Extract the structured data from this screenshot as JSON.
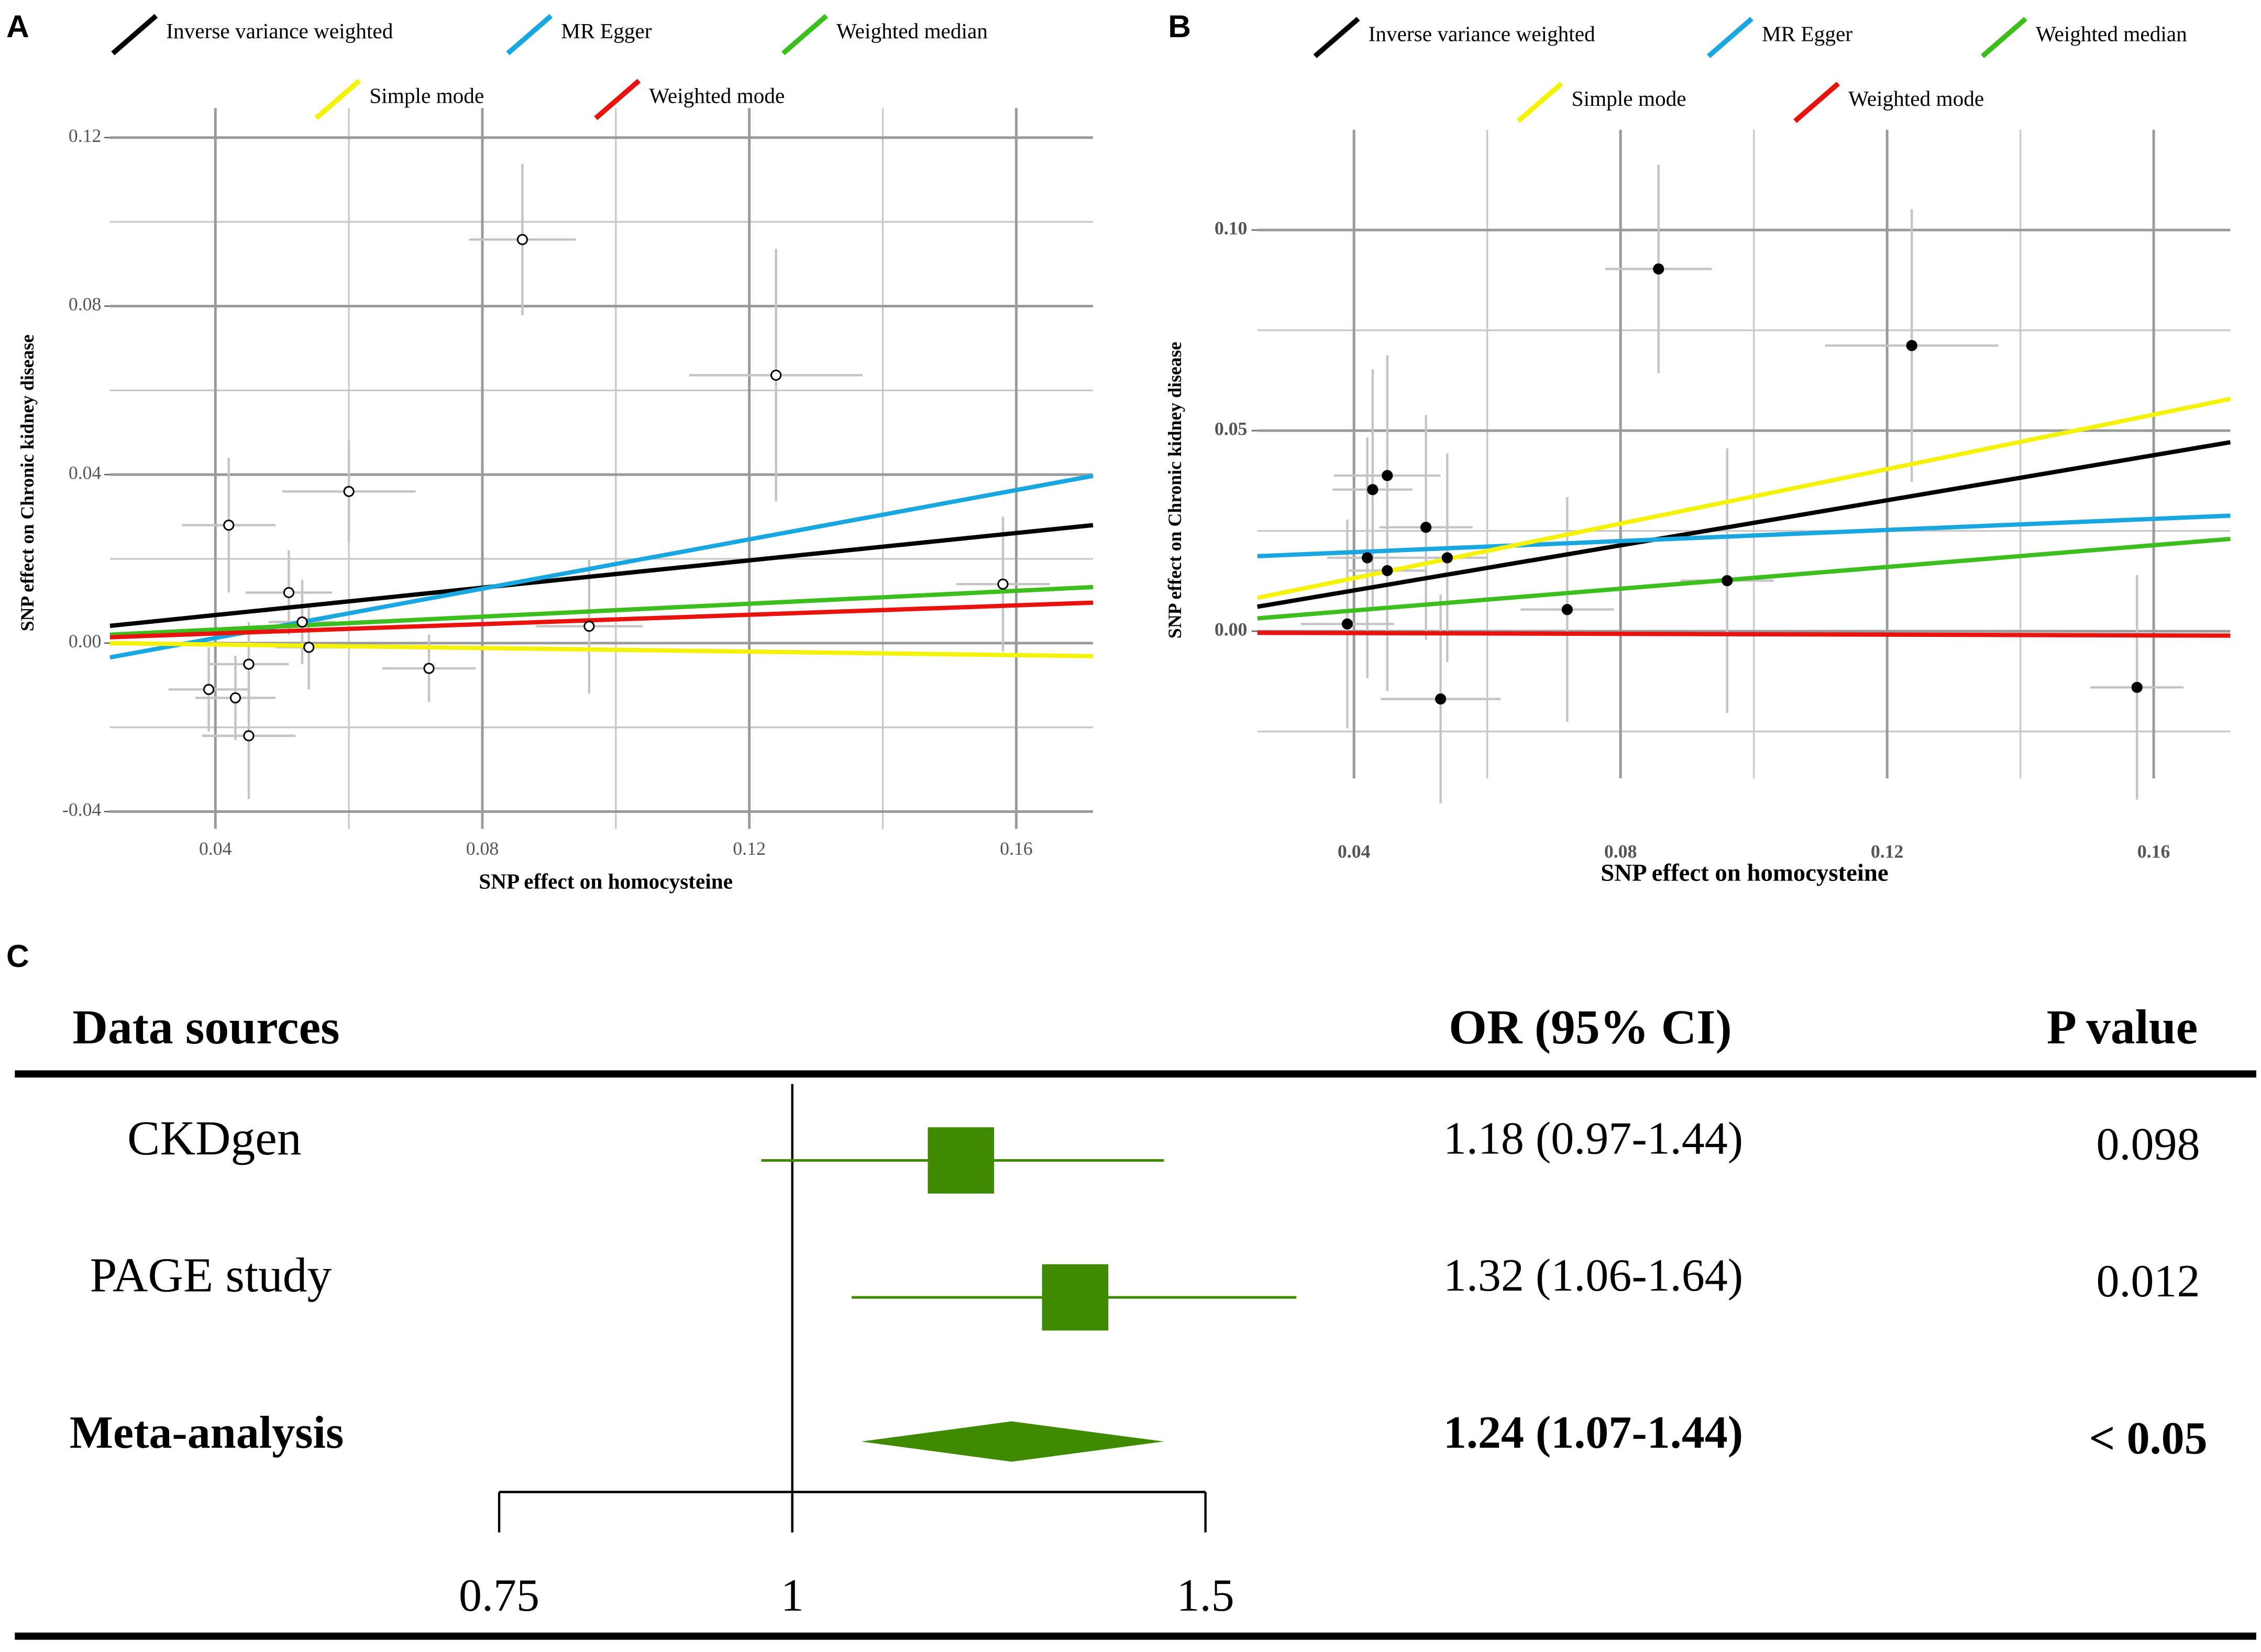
{
  "chart_data": [
    {
      "type": "scatter",
      "panel_label": "A",
      "xlabel": "SNP effect on homocysteine",
      "ylabel": "SNP effect on Chronic kidney disease",
      "xlim": [
        0.0242,
        0.1715
      ],
      "ylim": [
        -0.0441,
        0.127
      ],
      "xticks": [
        0.04,
        0.08,
        0.12,
        0.16
      ],
      "yticks": [
        -0.04,
        {
          "value": 0,
          "label": "0.00"
        },
        0.04,
        0.08,
        0.12
      ],
      "grid": true,
      "marker_fill": "none",
      "points": {
        "x": [
          0.086,
          0.124,
          0.06,
          0.042,
          0.051,
          0.053,
          0.054,
          0.045,
          0.039,
          0.043,
          0.045,
          0.072,
          0.096,
          0.158
        ],
        "y": [
          0.0958,
          0.0636,
          0.036,
          0.028,
          0.012,
          0.005,
          -0.001,
          -0.005,
          -0.011,
          -0.013,
          -0.022,
          -0.006,
          0.004,
          0.014
        ],
        "xerr": [
          0.008,
          0.013,
          0.01,
          0.007,
          0.0065,
          0.005,
          0.005,
          0.006,
          0.006,
          0.006,
          0.007,
          0.007,
          0.008,
          0.007
        ],
        "yerr": [
          0.018,
          0.03,
          0.012,
          0.016,
          0.01,
          0.01,
          0.01,
          0.01,
          0.01,
          0.01,
          0.015,
          0.008,
          0.016,
          0.016
        ]
      },
      "line_x": [
        0.0242,
        0.1715
      ],
      "series": [
        {
          "name": "Inverse variance weighted",
          "color": "#000000",
          "values": [
            0.0041,
            0.028
          ]
        },
        {
          "name": "MR Egger",
          "color": "#1aa7e0",
          "values": [
            -0.0034,
            0.0397
          ]
        },
        {
          "name": "Weighted median",
          "color": "#3cbf1e",
          "values": [
            0.002,
            0.0133
          ]
        },
        {
          "name": "Simple mode",
          "color": "#f5f20a",
          "values": [
            0.0,
            -0.0031
          ]
        },
        {
          "name": "Weighted mode",
          "color": "#e8120f",
          "values": [
            0.0014,
            0.0096
          ]
        }
      ]
    },
    {
      "type": "scatter",
      "panel_label": "B",
      "xlabel": "SNP effect on homocysteine",
      "ylabel": "SNP effect on Chronic kidney disease",
      "xlim": [
        0.0255,
        0.1715
      ],
      "ylim": [
        -0.0367,
        0.125
      ],
      "xticks": [
        0.04,
        0.08,
        0.12,
        0.16
      ],
      "yticks": [
        {
          "value": 0,
          "label": "0.00"
        },
        0.05,
        {
          "value": 0.1,
          "label": "0.10"
        }
      ],
      "grid": true,
      "marker_fill": "#000000",
      "points": {
        "x": [
          0.0857,
          0.1237,
          0.045,
          0.0428,
          0.042,
          0.045,
          0.0508,
          0.054,
          0.039,
          0.053,
          0.072,
          0.096,
          0.1575
        ],
        "y": [
          0.0903,
          0.0712,
          0.0388,
          0.0353,
          0.0183,
          0.0151,
          0.0259,
          0.0183,
          0.0018,
          -0.0169,
          0.0054,
          0.0126,
          -0.014
        ],
        "xerr": [
          0.008,
          0.013,
          0.008,
          0.006,
          0.006,
          0.006,
          0.007,
          0.006,
          0.007,
          0.009,
          0.007,
          0.007,
          0.007
        ],
        "yerr": [
          0.026,
          0.034,
          0.03,
          0.03,
          0.03,
          0.03,
          0.028,
          0.026,
          0.026,
          0.026,
          0.028,
          0.033,
          0.028
        ]
      },
      "line_x": [
        0.0255,
        0.1715
      ],
      "series": [
        {
          "name": "Inverse variance weighted",
          "color": "#000000",
          "values": [
            0.0061,
            0.0471
          ]
        },
        {
          "name": "MR Egger",
          "color": "#1aa7e0",
          "values": [
            0.0187,
            0.0288
          ]
        },
        {
          "name": "Weighted median",
          "color": "#3cbf1e",
          "values": [
            0.0032,
            0.023
          ]
        },
        {
          "name": "Simple mode",
          "color": "#f5f20a",
          "values": [
            0.0083,
            0.0579
          ]
        },
        {
          "name": "Weighted mode",
          "color": "#e8120f",
          "values": [
            -0.0004,
            -0.0011
          ]
        }
      ]
    },
    {
      "type": "forest",
      "panel_label": "C",
      "columns": [
        "Data sources",
        "OR (95% CI)",
        "P value"
      ],
      "rows": [
        {
          "label": "CKDgen",
          "or": 1.18,
          "lower": 0.97,
          "upper": 1.44,
          "ci_label": "1.18 (0.97-1.44)",
          "p": 0.098
        },
        {
          "label": "PAGE study",
          "or": 1.32,
          "lower": 1.06,
          "upper": 1.64,
          "ci_label": "1.32 (1.06-1.64)",
          "p": 0.012
        },
        {
          "label": "Meta-analysis",
          "or": 1.24,
          "lower": 1.07,
          "upper": 1.44,
          "ci_label": "1.24 (1.07-1.44)",
          "p": "< 0.05",
          "summary": true
        }
      ],
      "xlim": [
        0.75,
        1.5
      ],
      "xticks": [
        0.75,
        1,
        1.5
      ],
      "log": true,
      "reference_line": 1,
      "color": "#3f8a00"
    }
  ]
}
